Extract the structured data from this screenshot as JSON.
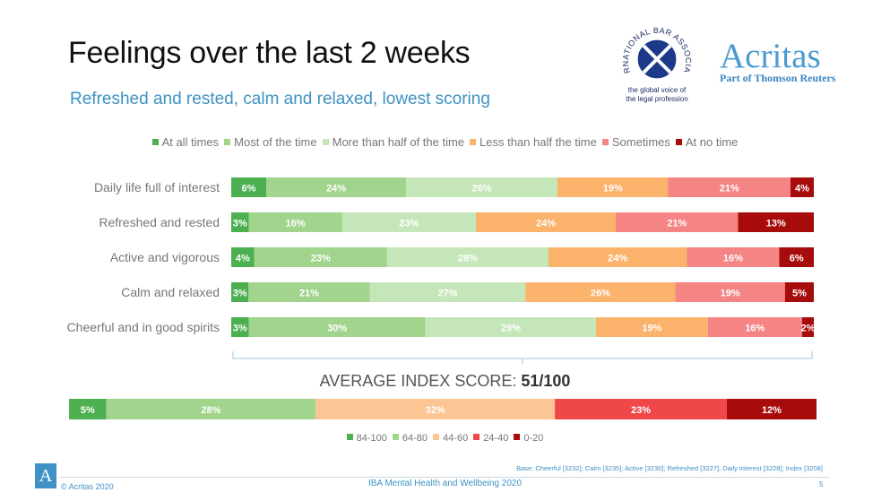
{
  "header": {
    "title": "Feelings over the last 2 weeks",
    "subtitle": "Refreshed and rested, calm and relaxed, lowest scoring"
  },
  "logos": {
    "iba_arc_text": "INTERNATIONAL BAR ASSOCIATION",
    "iba_tagline_1": "the global voice of",
    "iba_tagline_2": "the legal profession",
    "acritas_name": "Acritas",
    "acritas_sub": "Part of Thomson Reuters",
    "footer_logo_letter": "A"
  },
  "chart_data": [
    {
      "type": "bar",
      "orientation": "horizontal",
      "stacked": true,
      "normalized": true,
      "legend_position": "top",
      "categories": [
        "Daily life full of interest",
        "Refreshed and rested",
        "Active and vigorous",
        "Calm and relaxed",
        "Cheerful and in good spirits"
      ],
      "series": [
        {
          "name": "At all times",
          "color": "#4caf50",
          "values": [
            6,
            3,
            4,
            3,
            3
          ]
        },
        {
          "name": "Most of the time",
          "color": "#a1d48c",
          "values": [
            24,
            16,
            23,
            21,
            30
          ]
        },
        {
          "name": "More than half of the time",
          "color": "#c5e6b9",
          "values": [
            26,
            23,
            28,
            27,
            29
          ]
        },
        {
          "name": "Less than half the time",
          "color": "#fbb26a",
          "values": [
            19,
            24,
            24,
            26,
            19
          ]
        },
        {
          "name": "Sometimes",
          "color": "#f58484",
          "values": [
            21,
            21,
            16,
            19,
            16
          ]
        },
        {
          "name": "At no time",
          "color": "#a80b0b",
          "values": [
            4,
            13,
            6,
            5,
            2
          ]
        }
      ],
      "label_suffix": "%"
    },
    {
      "type": "bar",
      "orientation": "horizontal",
      "stacked": true,
      "normalized": true,
      "legend_position": "bottom",
      "title_prefix": "AVERAGE INDEX SCORE: ",
      "title_value": "51/100",
      "categories": [
        "Average index score"
      ],
      "series": [
        {
          "name": "84-100",
          "color": "#4caf50",
          "values": [
            5
          ]
        },
        {
          "name": "64-80",
          "color": "#a1d48c",
          "values": [
            28
          ]
        },
        {
          "name": "44-60",
          "color": "#fcc594",
          "values": [
            32
          ]
        },
        {
          "name": "24-40",
          "color": "#f04848",
          "values": [
            23
          ]
        },
        {
          "name": "0-20",
          "color": "#a80b0b",
          "values": [
            12
          ]
        }
      ],
      "label_suffix": "%"
    }
  ],
  "footer": {
    "copyright": "© Acritas 2020",
    "center": "IBA Mental Health and Wellbeing 2020",
    "base_note": "Base: Cheerful [3232]; Calm [3235]; Active [3230]; Refreshed [3227]; Daily interest [3228]; Index [3208]",
    "page_number": "5"
  }
}
